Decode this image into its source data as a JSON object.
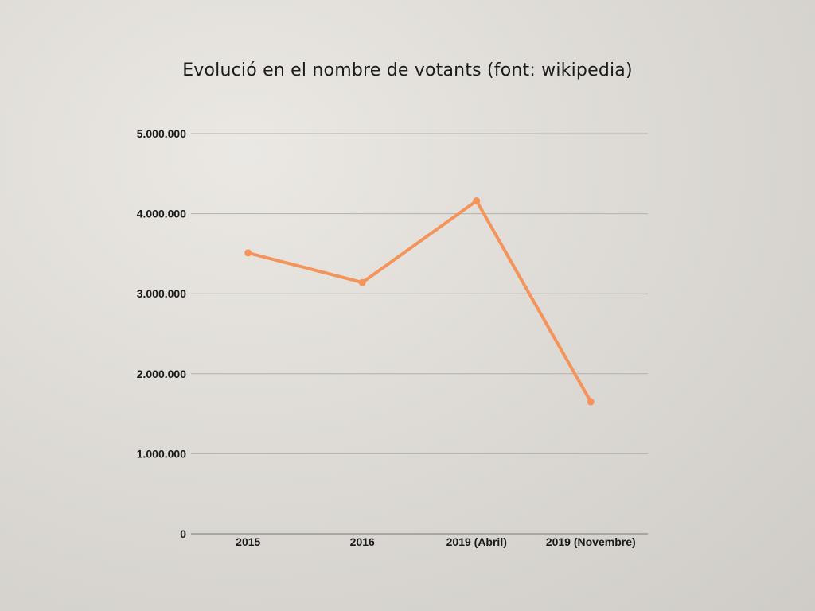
{
  "chart_data": {
    "type": "line",
    "title": "Evolució en el nombre de votants (font: wikipedia)",
    "xlabel": "",
    "ylabel": "",
    "categories": [
      "2015",
      "2016",
      "2019 (Abril)",
      "2019 (Novembre)"
    ],
    "series": [
      {
        "values": [
          3510000,
          3140000,
          4160000,
          1650000
        ],
        "color": "#f4945a"
      }
    ],
    "ylim": [
      0,
      5000000
    ],
    "yticks": [
      0,
      1000000,
      2000000,
      3000000,
      4000000,
      5000000
    ],
    "ytick_labels": [
      "0",
      "1.000.000",
      "2.000.000",
      "3.000.000",
      "4.000.000",
      "5.000.000"
    ],
    "grid": true,
    "legend": "none",
    "gridline_color": "#b3b0ab",
    "axis_color": "#8d8a86"
  }
}
